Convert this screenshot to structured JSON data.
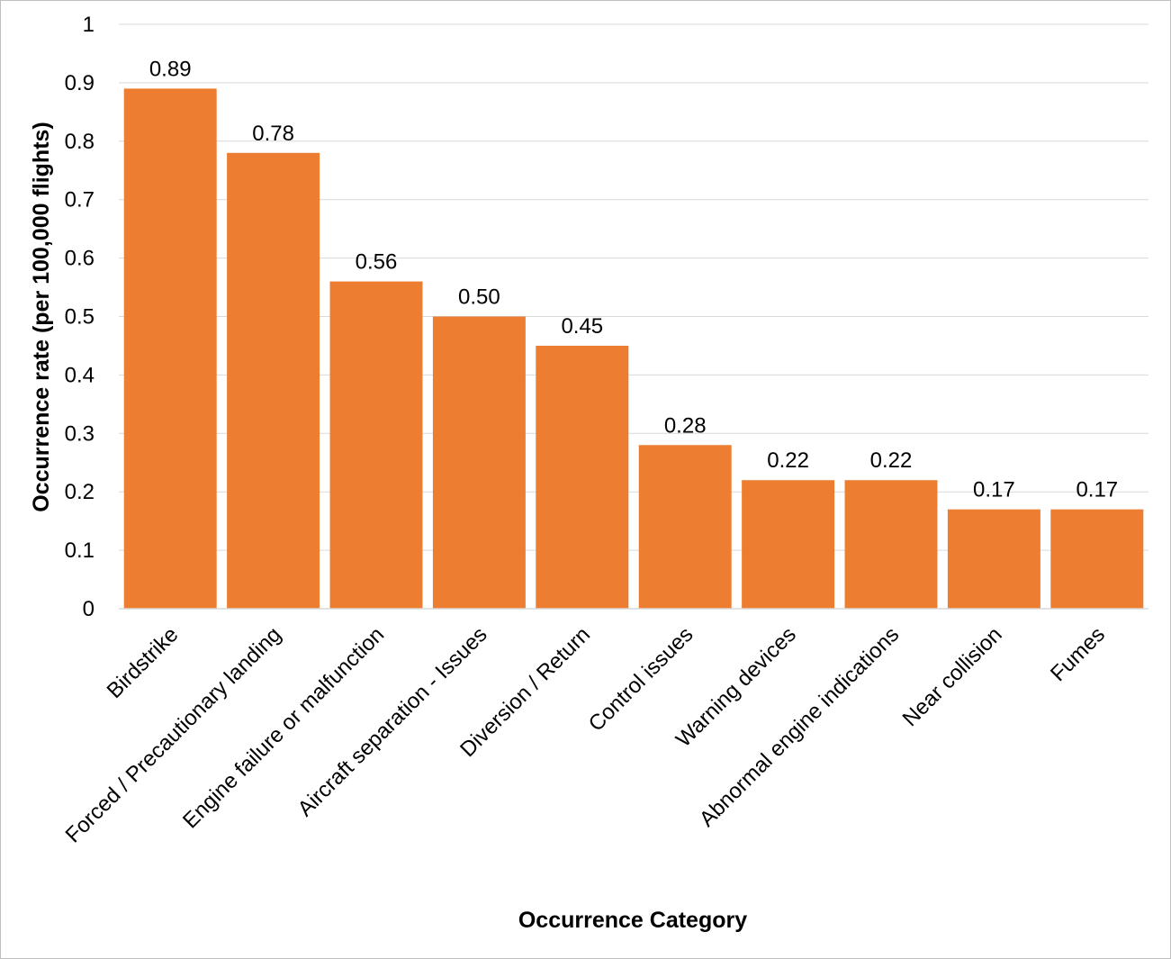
{
  "chart_data": {
    "type": "bar",
    "title": "",
    "xlabel": "Occurrence Category",
    "ylabel": "Occurrence rate (per 100,000 flights)",
    "ylim": [
      0,
      1
    ],
    "yticks": [
      "0",
      "0.1",
      "0.2",
      "0.3",
      "0.4",
      "0.5",
      "0.6",
      "0.7",
      "0.8",
      "0.9",
      "1"
    ],
    "grid": true,
    "legend": "none",
    "bar_color": "#ED7D31",
    "categories": [
      "Birdstrike",
      "Forced / Precautionary landing",
      "Engine failure or malfunction",
      "Aircraft separation - Issues",
      "Diversion / Return",
      "Control issues",
      "Warning devices",
      "Abnormal engine indications",
      "Near collision",
      "Fumes"
    ],
    "values": [
      0.89,
      0.78,
      0.56,
      0.5,
      0.45,
      0.28,
      0.22,
      0.22,
      0.17,
      0.17
    ],
    "data_labels": [
      "0.89",
      "0.78",
      "0.56",
      "0.50",
      "0.45",
      "0.28",
      "0.22",
      "0.22",
      "0.17",
      "0.17"
    ]
  }
}
